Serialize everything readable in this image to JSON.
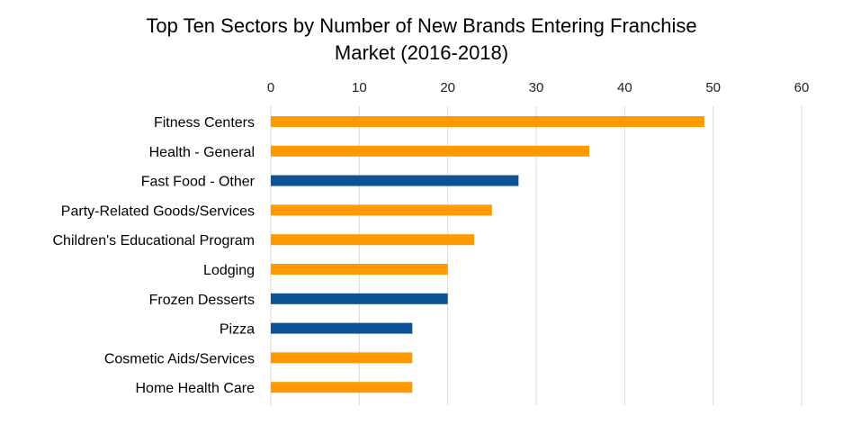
{
  "chart_data": {
    "type": "bar",
    "orientation": "horizontal",
    "title_line1": "Top Ten Sectors by Number of New Brands Entering Franchise",
    "title_line2": "Market (2016-2018)",
    "xlabel": "",
    "ylabel": "",
    "xlim": [
      0,
      60
    ],
    "ticks": [
      0,
      10,
      20,
      30,
      40,
      50,
      60
    ],
    "x_axis_position": "top",
    "grid": true,
    "legend": "none",
    "categories": [
      "Fitness Centers",
      "Health - General",
      "Fast Food - Other",
      "Party-Related Goods/Services",
      "Children's Educational Program",
      "Lodging",
      "Frozen Desserts",
      "Pizza",
      "Cosmetic Aids/Services",
      "Home Health Care"
    ],
    "values": [
      49,
      36,
      28,
      25,
      23,
      20,
      20,
      16,
      16,
      16
    ],
    "bar_colors": [
      "#ff9900",
      "#ff9900",
      "#0b5394",
      "#ff9900",
      "#ff9900",
      "#ff9900",
      "#0b5394",
      "#0b5394",
      "#ff9900",
      "#ff9900"
    ]
  },
  "colors": {
    "orange": "#ff9900",
    "blue": "#0b5394",
    "grid": "#d9d9d9"
  }
}
